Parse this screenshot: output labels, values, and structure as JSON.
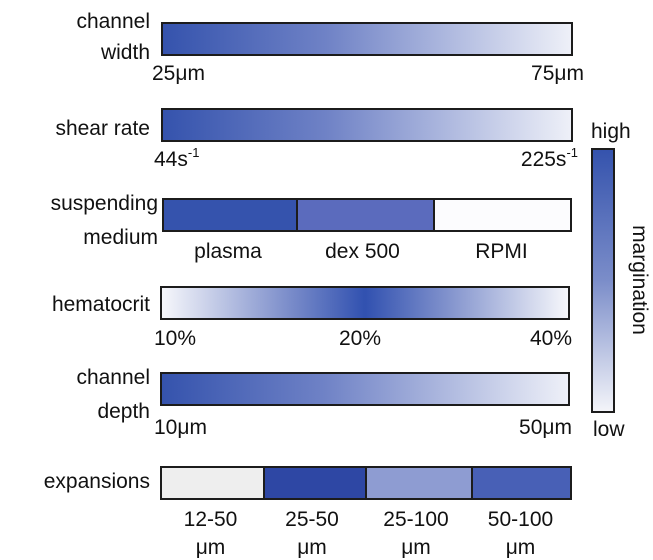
{
  "rows": {
    "channel_width": {
      "label_line1": "channel",
      "label_line2": "width",
      "low": "25μm",
      "high": "75μm"
    },
    "shear_rate": {
      "label": "shear rate",
      "low_base": "44s",
      "low_sup": "-1",
      "high_base": "225s",
      "high_sup": "-1"
    },
    "suspending_medium": {
      "label_line1": "suspending",
      "label_line2": "medium",
      "segments": [
        {
          "label": "plasma",
          "color": "#3553ad"
        },
        {
          "label": "dex 500",
          "color": "#5b6bbd"
        },
        {
          "label": "RPMI",
          "color": "#fcfcfe"
        }
      ]
    },
    "hematocrit": {
      "label": "hematocrit",
      "ticks": [
        "10%",
        "20%",
        "40%"
      ]
    },
    "channel_depth": {
      "label_line1": "channel",
      "label_line2": "depth",
      "low": "10μm",
      "high": "50μm"
    },
    "expansions": {
      "label": "expansions",
      "segments": [
        {
          "line1": "12-50",
          "line2": "μm",
          "color": "#eeeeee"
        },
        {
          "line1": "25-50",
          "line2": "μm",
          "color": "#2e47a4"
        },
        {
          "line1": "25-100",
          "line2": "μm",
          "color": "#8e9cd2"
        },
        {
          "line1": "50-100",
          "line2": "μm",
          "color": "#4860b6"
        }
      ]
    }
  },
  "scale": {
    "high": "high",
    "low": "low",
    "axis_label": "margination"
  },
  "colors": {
    "gradient_dark": "#3553ad",
    "gradient_light": "#eef0f8",
    "border": "#1c1c1c"
  }
}
